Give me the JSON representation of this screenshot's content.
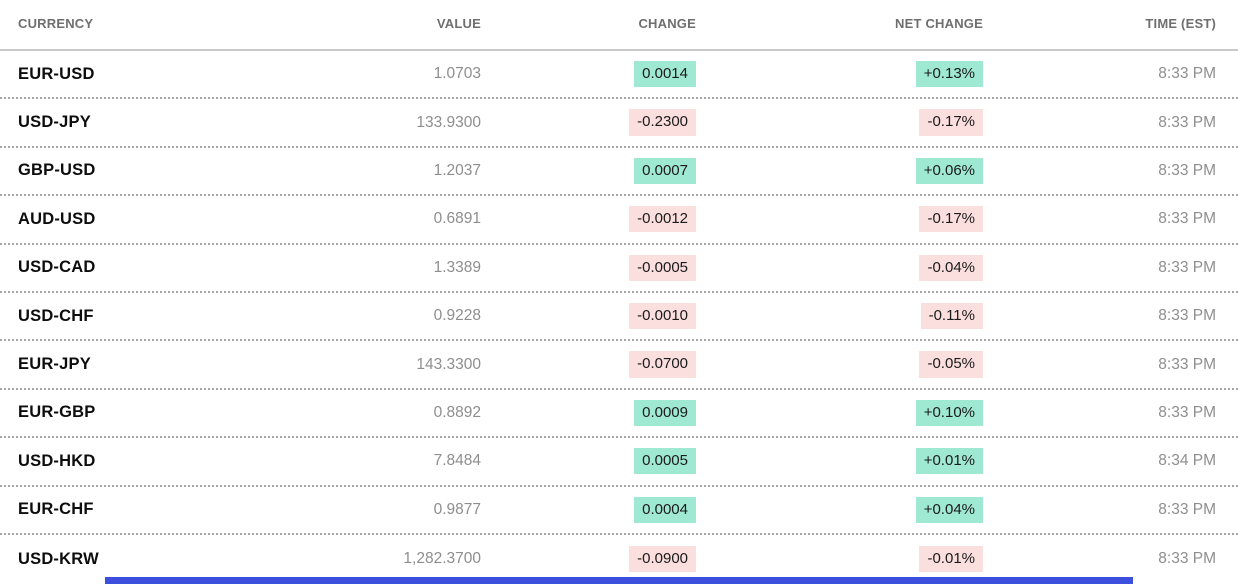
{
  "table": {
    "columns": [
      {
        "label": "CURRENCY",
        "align": "left"
      },
      {
        "label": "VALUE",
        "align": "right"
      },
      {
        "label": "CHANGE",
        "align": "right"
      },
      {
        "label": "NET CHANGE",
        "align": "right"
      },
      {
        "label": "TIME (EST)",
        "align": "right"
      }
    ],
    "rows": [
      {
        "currency": "EUR-USD",
        "value": "1.0703",
        "change": "0.0014",
        "net_change": "+0.13%",
        "direction": "up",
        "time": "8:33 PM"
      },
      {
        "currency": "USD-JPY",
        "value": "133.9300",
        "change": "-0.2300",
        "net_change": "-0.17%",
        "direction": "down",
        "time": "8:33 PM"
      },
      {
        "currency": "GBP-USD",
        "value": "1.2037",
        "change": "0.0007",
        "net_change": "+0.06%",
        "direction": "up",
        "time": "8:33 PM"
      },
      {
        "currency": "AUD-USD",
        "value": "0.6891",
        "change": "-0.0012",
        "net_change": "-0.17%",
        "direction": "down",
        "time": "8:33 PM"
      },
      {
        "currency": "USD-CAD",
        "value": "1.3389",
        "change": "-0.0005",
        "net_change": "-0.04%",
        "direction": "down",
        "time": "8:33 PM"
      },
      {
        "currency": "USD-CHF",
        "value": "0.9228",
        "change": "-0.0010",
        "net_change": "-0.11%",
        "direction": "down",
        "time": "8:33 PM"
      },
      {
        "currency": "EUR-JPY",
        "value": "143.3300",
        "change": "-0.0700",
        "net_change": "-0.05%",
        "direction": "down",
        "time": "8:33 PM"
      },
      {
        "currency": "EUR-GBP",
        "value": "0.8892",
        "change": "0.0009",
        "net_change": "+0.10%",
        "direction": "up",
        "time": "8:33 PM"
      },
      {
        "currency": "USD-HKD",
        "value": "7.8484",
        "change": "0.0005",
        "net_change": "+0.01%",
        "direction": "up",
        "time": "8:34 PM"
      },
      {
        "currency": "EUR-CHF",
        "value": "0.9877",
        "change": "0.0004",
        "net_change": "+0.04%",
        "direction": "up",
        "time": "8:33 PM"
      },
      {
        "currency": "USD-KRW",
        "value": "1,282.3700",
        "change": "-0.0900",
        "net_change": "-0.01%",
        "direction": "down",
        "time": "8:33 PM"
      }
    ]
  },
  "colors": {
    "positive_chip_bg": "#9fe8d2",
    "negative_chip_bg": "#fbdede",
    "header_text": "#6f6f6f",
    "muted_text": "#8e8e8e",
    "ticker_text": "#0d0d0d",
    "header_rule": "#c9c9c9",
    "row_separator": "#a6a6a6",
    "bottom_bar": "#3c50dd"
  }
}
